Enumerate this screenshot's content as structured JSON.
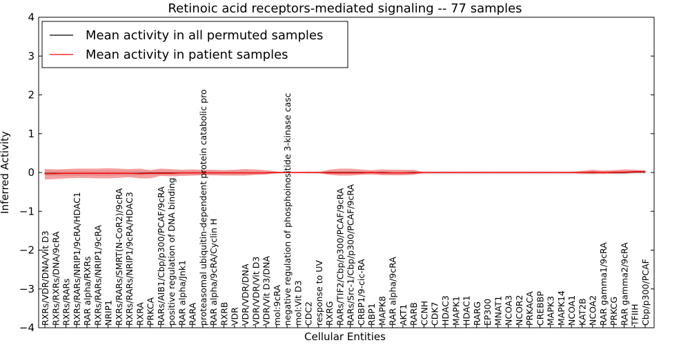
{
  "chart_data": {
    "type": "line",
    "title": "Retinoic acid receptors-mediated signaling -- 77 samples",
    "xlabel": "Cellular Entities",
    "ylabel": "Inferred Activity",
    "ylim": [
      -4,
      4
    ],
    "yticks": [
      -4,
      -3,
      -2,
      -1,
      0,
      1,
      2,
      3,
      4
    ],
    "ytick_labels": [
      "−4",
      "−3",
      "−2",
      "−1",
      "0",
      "1",
      "2",
      "3",
      "4"
    ],
    "legend_position": "top-left",
    "categories": [
      "RXRs/VDR/DNA/Vit D3",
      "RXRs/RXRs/DNA/9cRA",
      "RXRs/RARs",
      "RXRs/RARs/NRIP1/9cRA/HDAC1",
      "RAR alpha/RXRs",
      "RXRs/RARs/NRIP1/9cRA",
      "NRIP1",
      "RXRs/RARs/SMRT(N-CoR2)/9cRA",
      "RXRs/RARs/NRIP1/9cRA/HDAC3",
      "RXRA",
      "PRKCA",
      "RARs/AIB1/Cbp/p300/PCAF/9cRA",
      "positive regulation of DNA binding",
      "RAR alpha/Jnk1",
      "RARA",
      "proteasomal ubiquitin-dependent protein catabolic pro",
      "RAR alpha/9cRA/Cyclin H",
      "RXRB",
      "VDR",
      "VDR/VDR/DNA",
      "VDR/VDR/Vit D3",
      "VDR/Vit D3/DNA",
      "mol:9cRA",
      "negative regulation of phosphoinositide 3-kinase casc",
      "mol:Vit D3",
      "CDC2",
      "response to UV",
      "RXRG",
      "RARs/TIF2/Cbp/p300/PCAF/9cRA",
      "RARs/Src-1/Cbp/p300/PCAF/9cRA",
      "CRBP1/9-cic-RA",
      "RBP1",
      "MAPK8",
      "RAR alpha/9cRA",
      "AKT1",
      "RARB",
      "CCNH",
      "CDK7",
      "HDAC3",
      "MAPK1",
      "HDAC1",
      "RARG",
      "EP300",
      "MNAT1",
      "NCOA3",
      "NCOR2",
      "PRKACA",
      "CREBBP",
      "MAPK3",
      "MAPK14",
      "NCOA1",
      "KAT2B",
      "NCOA2",
      "RAR gamma1/9cRA",
      "PRKCG",
      "RAR gamma2/9cRA",
      "TFIIH",
      "Cbp/p300/PCAF"
    ],
    "series": [
      {
        "name": "Mean activity in all permuted samples",
        "color": "#000000",
        "values": [
          -0.02,
          -0.02,
          -0.02,
          -0.02,
          -0.02,
          -0.02,
          -0.02,
          -0.02,
          -0.02,
          -0.02,
          -0.01,
          -0.01,
          -0.01,
          -0.01,
          -0.01,
          -0.01,
          -0.01,
          -0.01,
          -0.01,
          -0.01,
          -0.01,
          -0.01,
          0.0,
          0.0,
          0.0,
          0.0,
          0.0,
          0.0,
          0.0,
          0.0,
          0.0,
          0.0,
          0.0,
          -0.01,
          -0.01,
          0.0,
          0.0,
          0.0,
          0.0,
          0.0,
          0.0,
          0.0,
          0.0,
          0.0,
          0.0,
          0.0,
          0.0,
          0.0,
          0.0,
          0.0,
          0.0,
          0.0,
          0.0,
          0.0,
          0.0,
          0.0,
          0.01,
          0.01
        ],
        "band_lower": [
          -0.09,
          -0.09,
          -0.09,
          -0.09,
          -0.09,
          -0.09,
          -0.09,
          -0.08,
          -0.08,
          -0.08,
          -0.07,
          -0.07,
          -0.07,
          -0.06,
          -0.06,
          -0.06,
          -0.06,
          -0.06,
          -0.06,
          -0.06,
          -0.06,
          -0.05,
          -0.03,
          -0.02,
          -0.02,
          -0.03,
          -0.03,
          -0.04,
          -0.05,
          -0.05,
          -0.05,
          -0.05,
          -0.05,
          -0.06,
          -0.06,
          -0.05,
          -0.05,
          -0.05,
          -0.05,
          -0.05,
          -0.05,
          -0.05,
          -0.05,
          -0.05,
          -0.05,
          -0.05,
          -0.05,
          -0.05,
          -0.05,
          -0.05,
          -0.05,
          -0.05,
          -0.05,
          -0.05,
          -0.05,
          -0.05,
          -0.04,
          -0.04
        ],
        "band_upper": [
          0.05,
          0.05,
          0.05,
          0.05,
          0.05,
          0.05,
          0.05,
          0.05,
          0.05,
          0.05,
          0.05,
          0.05,
          0.05,
          0.05,
          0.05,
          0.05,
          0.05,
          0.05,
          0.05,
          0.05,
          0.05,
          0.04,
          0.03,
          0.02,
          0.02,
          0.03,
          0.03,
          0.04,
          0.04,
          0.04,
          0.04,
          0.04,
          0.04,
          0.04,
          0.04,
          0.04,
          0.04,
          0.04,
          0.04,
          0.04,
          0.04,
          0.04,
          0.04,
          0.04,
          0.04,
          0.04,
          0.04,
          0.04,
          0.04,
          0.04,
          0.04,
          0.04,
          0.04,
          0.04,
          0.04,
          0.04,
          0.05,
          0.05
        ]
      },
      {
        "name": "Mean activity in patient samples",
        "color": "#ff0000",
        "values": [
          -0.03,
          -0.03,
          -0.02,
          -0.02,
          -0.02,
          -0.02,
          -0.02,
          -0.02,
          -0.02,
          -0.03,
          -0.02,
          -0.02,
          -0.02,
          -0.01,
          -0.01,
          -0.01,
          -0.01,
          -0.01,
          -0.01,
          -0.01,
          -0.01,
          -0.01,
          0.0,
          0.0,
          0.0,
          0.0,
          0.0,
          -0.01,
          -0.01,
          -0.01,
          -0.01,
          0.0,
          -0.01,
          -0.01,
          -0.01,
          -0.01,
          0.0,
          0.0,
          0.0,
          0.0,
          0.0,
          0.0,
          0.0,
          0.0,
          0.0,
          0.0,
          0.0,
          0.0,
          0.0,
          0.0,
          0.0,
          0.0,
          0.01,
          0.0,
          0.01,
          0.01,
          0.02,
          0.02
        ],
        "band_lower": [
          -0.18,
          -0.17,
          -0.15,
          -0.14,
          -0.14,
          -0.15,
          -0.15,
          -0.14,
          -0.12,
          -0.15,
          -0.15,
          -0.09,
          -0.1,
          -0.09,
          -0.08,
          -0.07,
          -0.07,
          -0.08,
          -0.08,
          -0.08,
          -0.06,
          -0.05,
          -0.02,
          -0.01,
          -0.01,
          -0.01,
          -0.01,
          -0.06,
          -0.08,
          -0.08,
          -0.06,
          -0.05,
          -0.07,
          -0.07,
          -0.07,
          -0.06,
          -0.01,
          -0.01,
          -0.01,
          -0.01,
          -0.01,
          -0.01,
          -0.01,
          -0.01,
          -0.01,
          -0.01,
          -0.01,
          -0.01,
          -0.01,
          -0.01,
          -0.01,
          -0.03,
          -0.04,
          -0.03,
          -0.03,
          -0.03,
          -0.01,
          -0.01
        ],
        "band_upper": [
          0.09,
          0.08,
          0.09,
          0.1,
          0.1,
          0.1,
          0.11,
          0.1,
          0.09,
          0.1,
          0.06,
          0.1,
          0.09,
          0.07,
          0.08,
          0.07,
          0.07,
          0.06,
          0.07,
          0.09,
          0.08,
          0.06,
          0.02,
          0.01,
          0.01,
          0.01,
          0.01,
          0.07,
          0.1,
          0.1,
          0.08,
          0.06,
          0.08,
          0.07,
          0.07,
          0.07,
          0.01,
          0.01,
          0.01,
          0.01,
          0.01,
          0.01,
          0.01,
          0.01,
          0.01,
          0.01,
          0.01,
          0.01,
          0.01,
          0.01,
          0.01,
          0.04,
          0.07,
          0.05,
          0.06,
          0.08,
          0.07,
          0.06
        ]
      }
    ]
  }
}
